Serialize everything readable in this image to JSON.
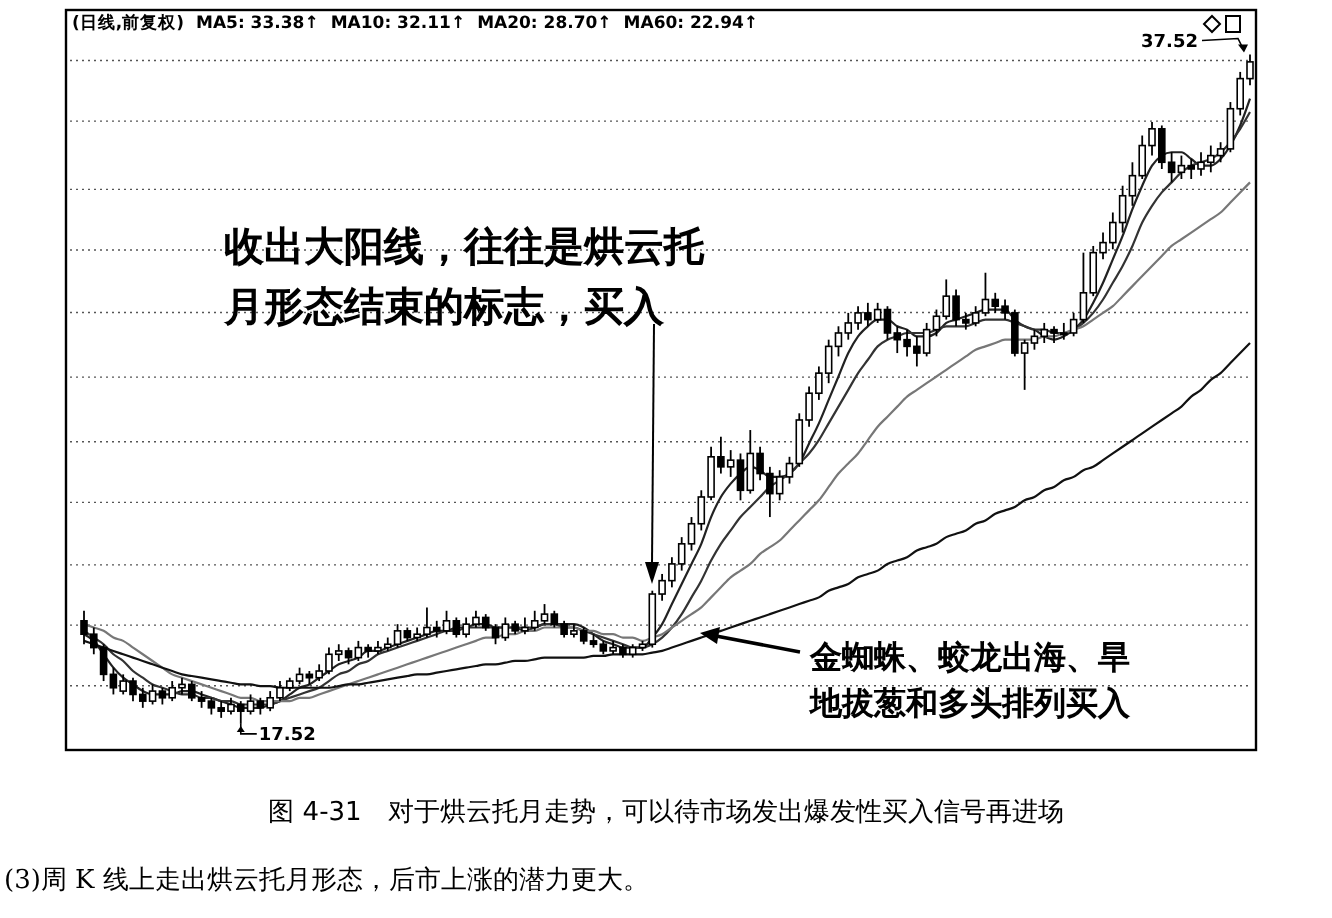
{
  "chart_data": {
    "type": "candlestick",
    "title": "(日线,前复权)",
    "categories": [
      null,
      null,
      null,
      null,
      null,
      null,
      null,
      null,
      null,
      null,
      null,
      null,
      null,
      null,
      null,
      null,
      null,
      null,
      null,
      null,
      null,
      null,
      null,
      null,
      null,
      null,
      null,
      null,
      null,
      null,
      null,
      null,
      null,
      null,
      null,
      null,
      null,
      null,
      null,
      null,
      null,
      null,
      null,
      null,
      null,
      null,
      null,
      null,
      null,
      null,
      null,
      null,
      null,
      null,
      null,
      null,
      null,
      null,
      null,
      null,
      null,
      null,
      null,
      null,
      null,
      null,
      null,
      null,
      null,
      null,
      null,
      null,
      null,
      null,
      null,
      null,
      null,
      null,
      null,
      null,
      null,
      null,
      null,
      null,
      null,
      null,
      null,
      null,
      null,
      null,
      null,
      null,
      null,
      null,
      null,
      null,
      null,
      null,
      null,
      null,
      null,
      null,
      null,
      null,
      null,
      null,
      null,
      null,
      null,
      null,
      null,
      null,
      null,
      null,
      null,
      null,
      null,
      null,
      null,
      null
    ],
    "ohlc": [
      [
        20.6,
        20.9,
        19.9,
        20.2
      ],
      [
        20.2,
        20.4,
        19.6,
        19.8
      ],
      [
        19.8,
        19.9,
        18.8,
        19.0
      ],
      [
        19.0,
        19.2,
        18.4,
        18.6
      ],
      [
        18.5,
        19.0,
        18.4,
        18.8
      ],
      [
        18.8,
        18.9,
        18.2,
        18.4
      ],
      [
        18.4,
        18.6,
        18.0,
        18.2
      ],
      [
        18.2,
        18.7,
        18.1,
        18.5
      ],
      [
        18.5,
        18.6,
        18.1,
        18.3
      ],
      [
        18.3,
        18.8,
        18.2,
        18.6
      ],
      [
        18.6,
        18.9,
        18.4,
        18.7
      ],
      [
        18.7,
        18.8,
        18.2,
        18.3
      ],
      [
        18.3,
        18.5,
        18.0,
        18.2
      ],
      [
        18.2,
        18.3,
        17.8,
        18.0
      ],
      [
        18.0,
        18.2,
        17.7,
        17.9
      ],
      [
        17.9,
        18.3,
        17.8,
        18.1
      ],
      [
        18.1,
        18.2,
        17.52,
        17.9
      ],
      [
        17.9,
        18.4,
        17.8,
        18.2
      ],
      [
        18.2,
        18.3,
        17.8,
        18.0
      ],
      [
        18.0,
        18.5,
        17.9,
        18.3
      ],
      [
        18.3,
        18.8,
        18.2,
        18.6
      ],
      [
        18.6,
        18.9,
        18.5,
        18.8
      ],
      [
        18.8,
        19.2,
        18.7,
        19.0
      ],
      [
        19.0,
        19.1,
        18.7,
        18.9
      ],
      [
        18.9,
        19.3,
        18.8,
        19.1
      ],
      [
        19.1,
        19.8,
        19.0,
        19.6
      ],
      [
        19.6,
        19.9,
        19.4,
        19.7
      ],
      [
        19.7,
        19.8,
        19.3,
        19.5
      ],
      [
        19.5,
        20.0,
        19.4,
        19.8
      ],
      [
        19.8,
        19.9,
        19.5,
        19.7
      ],
      [
        19.7,
        20.0,
        19.6,
        19.8
      ],
      [
        19.8,
        20.1,
        19.7,
        19.9
      ],
      [
        19.9,
        20.5,
        19.8,
        20.3
      ],
      [
        20.3,
        20.4,
        20.0,
        20.1
      ],
      [
        20.1,
        20.4,
        20.0,
        20.2
      ],
      [
        20.2,
        21.0,
        20.1,
        20.4
      ],
      [
        20.4,
        20.6,
        20.1,
        20.3
      ],
      [
        20.3,
        20.9,
        20.2,
        20.6
      ],
      [
        20.6,
        20.7,
        20.1,
        20.2
      ],
      [
        20.2,
        20.7,
        20.1,
        20.5
      ],
      [
        20.5,
        20.9,
        20.4,
        20.7
      ],
      [
        20.7,
        20.8,
        20.3,
        20.4
      ],
      [
        20.4,
        20.5,
        19.9,
        20.1
      ],
      [
        20.1,
        20.7,
        20.0,
        20.5
      ],
      [
        20.5,
        20.6,
        20.2,
        20.3
      ],
      [
        20.3,
        20.7,
        20.2,
        20.4
      ],
      [
        20.4,
        20.9,
        20.3,
        20.6
      ],
      [
        20.6,
        21.1,
        20.5,
        20.8
      ],
      [
        20.8,
        20.9,
        20.4,
        20.5
      ],
      [
        20.5,
        20.6,
        20.1,
        20.2
      ],
      [
        20.2,
        20.5,
        20.1,
        20.3
      ],
      [
        20.3,
        20.4,
        19.9,
        20.0
      ],
      [
        20.0,
        20.2,
        19.8,
        19.9
      ],
      [
        19.9,
        20.0,
        19.6,
        19.7
      ],
      [
        19.7,
        20.0,
        19.6,
        19.8
      ],
      [
        19.8,
        19.9,
        19.5,
        19.6
      ],
      [
        19.6,
        19.9,
        19.5,
        19.8
      ],
      [
        19.8,
        20.0,
        19.7,
        19.9
      ],
      [
        19.9,
        21.5,
        19.8,
        21.4
      ],
      [
        21.4,
        22.0,
        21.2,
        21.8
      ],
      [
        21.8,
        22.5,
        21.6,
        22.3
      ],
      [
        22.3,
        23.1,
        22.1,
        22.9
      ],
      [
        22.9,
        23.7,
        22.7,
        23.5
      ],
      [
        23.5,
        24.5,
        23.3,
        24.3
      ],
      [
        24.3,
        25.8,
        24.2,
        25.5
      ],
      [
        25.5,
        26.1,
        25.0,
        25.2
      ],
      [
        25.2,
        25.7,
        24.9,
        25.4
      ],
      [
        25.4,
        25.6,
        24.2,
        24.5
      ],
      [
        24.5,
        26.3,
        24.4,
        25.6
      ],
      [
        25.6,
        25.8,
        24.8,
        25.0
      ],
      [
        25.0,
        25.2,
        23.7,
        24.4
      ],
      [
        24.4,
        25.1,
        24.2,
        24.9
      ],
      [
        24.9,
        25.5,
        24.7,
        25.3
      ],
      [
        25.3,
        26.8,
        25.2,
        26.6
      ],
      [
        26.6,
        27.6,
        26.4,
        27.4
      ],
      [
        27.4,
        28.2,
        27.2,
        28.0
      ],
      [
        28.0,
        29.0,
        27.7,
        28.8
      ],
      [
        28.8,
        29.4,
        28.5,
        29.2
      ],
      [
        29.2,
        29.8,
        29.0,
        29.5
      ],
      [
        29.5,
        30.0,
        29.3,
        29.8
      ],
      [
        29.8,
        30.1,
        29.4,
        29.6
      ],
      [
        29.6,
        30.1,
        29.5,
        29.9
      ],
      [
        29.9,
        30.0,
        29.0,
        29.2
      ],
      [
        29.2,
        29.4,
        28.6,
        29.0
      ],
      [
        29.0,
        29.3,
        28.5,
        28.8
      ],
      [
        28.8,
        29.1,
        28.2,
        28.6
      ],
      [
        28.6,
        29.5,
        28.5,
        29.3
      ],
      [
        29.3,
        29.9,
        29.1,
        29.7
      ],
      [
        29.7,
        30.8,
        29.6,
        30.3
      ],
      [
        30.3,
        30.5,
        29.4,
        29.6
      ],
      [
        29.6,
        29.8,
        29.3,
        29.5
      ],
      [
        29.5,
        30.0,
        29.4,
        29.8
      ],
      [
        29.8,
        31.0,
        29.7,
        30.2
      ],
      [
        30.2,
        30.4,
        29.8,
        30.0
      ],
      [
        30.0,
        30.2,
        29.6,
        29.8
      ],
      [
        29.8,
        29.9,
        28.5,
        28.6
      ],
      [
        28.6,
        29.0,
        27.5,
        28.9
      ],
      [
        28.9,
        29.3,
        28.7,
        29.1
      ],
      [
        29.1,
        29.5,
        28.9,
        29.3
      ],
      [
        29.3,
        29.4,
        28.9,
        29.2
      ],
      [
        29.2,
        29.5,
        29.0,
        29.2
      ],
      [
        29.2,
        29.8,
        29.1,
        29.6
      ],
      [
        29.6,
        31.6,
        29.5,
        30.4
      ],
      [
        30.4,
        31.8,
        30.3,
        31.6
      ],
      [
        31.6,
        32.2,
        31.4,
        31.9
      ],
      [
        31.9,
        32.8,
        31.7,
        32.5
      ],
      [
        32.5,
        33.6,
        32.2,
        33.3
      ],
      [
        33.3,
        34.3,
        33.0,
        33.9
      ],
      [
        33.9,
        35.1,
        33.8,
        34.8
      ],
      [
        34.8,
        35.5,
        34.5,
        35.3
      ],
      [
        35.3,
        35.4,
        34.1,
        34.3
      ],
      [
        34.3,
        34.6,
        33.7,
        34.0
      ],
      [
        34.0,
        34.5,
        33.8,
        34.2
      ],
      [
        34.2,
        34.4,
        33.8,
        34.1
      ],
      [
        34.1,
        34.6,
        33.9,
        34.3
      ],
      [
        34.3,
        34.8,
        34.0,
        34.5
      ],
      [
        34.5,
        34.9,
        34.3,
        34.7
      ],
      [
        34.7,
        36.1,
        34.6,
        35.9
      ],
      [
        35.9,
        37.0,
        35.7,
        36.8
      ],
      [
        36.8,
        37.52,
        36.6,
        37.3
      ]
    ],
    "series": [
      {
        "type": "line",
        "color": "#222222",
        "values": [
          20.2,
          20.0,
          19.6,
          19.2,
          18.9,
          18.7,
          18.5,
          18.4,
          18.4,
          18.4,
          18.5,
          18.5,
          18.4,
          18.3,
          18.2,
          18.1,
          18.0,
          18.0,
          18.0,
          18.1,
          18.2,
          18.4,
          18.6,
          18.7,
          18.9,
          19.1,
          19.3,
          19.4,
          19.5,
          19.7,
          19.7,
          19.8,
          19.9,
          20.0,
          20.1,
          20.2,
          20.3,
          20.3,
          20.4,
          20.4,
          20.5,
          20.5,
          20.4,
          20.4,
          20.4,
          20.3,
          20.4,
          20.5,
          20.5,
          20.5,
          20.5,
          20.4,
          20.2,
          20.0,
          19.9,
          19.8,
          19.8,
          19.8,
          20.1,
          20.5,
          21.1,
          21.7,
          22.3,
          22.9,
          23.7,
          24.3,
          24.7,
          25.0,
          25.2,
          25.1,
          24.9,
          24.9,
          25.0,
          25.3,
          25.9,
          26.5,
          27.2,
          27.9,
          28.6,
          29.1,
          29.4,
          29.6,
          29.6,
          29.4,
          29.3,
          29.1,
          29.1,
          29.2,
          29.5,
          29.6,
          29.7,
          29.8,
          29.9,
          29.9,
          29.9,
          29.6,
          29.4,
          29.3,
          29.1,
          29.0,
          29.1,
          29.3,
          29.6,
          30.1,
          30.7,
          31.4,
          32.1,
          32.9,
          33.6,
          34.2,
          34.5,
          34.6,
          34.6,
          34.4,
          34.2,
          34.2,
          34.4,
          34.8,
          35.4,
          36.2
        ]
      },
      {
        "type": "line",
        "color": "#333333",
        "values": [
          20.3,
          20.1,
          19.9,
          19.6,
          19.4,
          19.1,
          18.9,
          18.7,
          18.6,
          18.5,
          18.4,
          18.4,
          18.3,
          18.3,
          18.2,
          18.2,
          18.1,
          18.1,
          18.1,
          18.1,
          18.2,
          18.3,
          18.4,
          18.5,
          18.6,
          18.8,
          19.0,
          19.1,
          19.3,
          19.4,
          19.6,
          19.7,
          19.8,
          19.9,
          20.0,
          20.1,
          20.2,
          20.3,
          20.3,
          20.4,
          20.4,
          20.4,
          20.4,
          20.4,
          20.4,
          20.4,
          20.4,
          20.5,
          20.5,
          20.4,
          20.4,
          20.3,
          20.2,
          20.1,
          20.0,
          19.9,
          19.8,
          19.8,
          19.9,
          20.1,
          20.4,
          20.8,
          21.3,
          21.8,
          22.4,
          22.9,
          23.3,
          23.7,
          24.0,
          24.3,
          24.6,
          24.8,
          25.0,
          25.3,
          25.6,
          26.0,
          26.5,
          27.0,
          27.5,
          28.0,
          28.4,
          28.8,
          29.0,
          29.1,
          29.2,
          29.2,
          29.2,
          29.3,
          29.4,
          29.4,
          29.4,
          29.5,
          29.6,
          29.6,
          29.6,
          29.5,
          29.4,
          29.3,
          29.3,
          29.2,
          29.2,
          29.3,
          29.5,
          29.8,
          30.2,
          30.7,
          31.2,
          31.8,
          32.5,
          33.0,
          33.4,
          33.7,
          34.0,
          34.2,
          34.3,
          34.4,
          34.6,
          34.9,
          35.3,
          35.8
        ]
      },
      {
        "type": "line",
        "color": "#777777",
        "values": [
          20.5,
          20.4,
          20.3,
          20.1,
          20.0,
          19.8,
          19.6,
          19.4,
          19.2,
          19.0,
          18.9,
          18.8,
          18.7,
          18.6,
          18.5,
          18.4,
          18.3,
          18.3,
          18.2,
          18.2,
          18.2,
          18.2,
          18.3,
          18.3,
          18.4,
          18.5,
          18.6,
          18.7,
          18.8,
          18.9,
          19.0,
          19.1,
          19.2,
          19.3,
          19.4,
          19.5,
          19.6,
          19.7,
          19.8,
          19.9,
          20.0,
          20.1,
          20.1,
          20.2,
          20.2,
          20.3,
          20.3,
          20.4,
          20.4,
          20.4,
          20.4,
          20.3,
          20.3,
          20.2,
          20.2,
          20.1,
          20.1,
          20.0,
          20.1,
          20.2,
          20.4,
          20.6,
          20.8,
          21.0,
          21.3,
          21.6,
          21.9,
          22.1,
          22.3,
          22.6,
          22.8,
          23.0,
          23.3,
          23.6,
          23.9,
          24.2,
          24.6,
          25.0,
          25.3,
          25.6,
          26.0,
          26.4,
          26.7,
          27.0,
          27.3,
          27.5,
          27.7,
          27.9,
          28.1,
          28.3,
          28.5,
          28.7,
          28.8,
          28.9,
          29.0,
          29.0,
          29.0,
          29.0,
          29.1,
          29.1,
          29.2,
          29.3,
          29.4,
          29.6,
          29.8,
          30.0,
          30.3,
          30.6,
          30.9,
          31.2,
          31.5,
          31.8,
          32.0,
          32.2,
          32.4,
          32.6,
          32.8,
          33.1,
          33.4,
          33.7
        ]
      },
      {
        "type": "line",
        "color": "#111111",
        "values": [
          20.0,
          19.9,
          19.8,
          19.7,
          19.6,
          19.5,
          19.4,
          19.3,
          19.2,
          19.1,
          19.0,
          18.95,
          18.9,
          18.85,
          18.8,
          18.75,
          18.7,
          18.7,
          18.65,
          18.65,
          18.6,
          18.6,
          18.6,
          18.6,
          18.6,
          18.6,
          18.65,
          18.7,
          18.7,
          18.75,
          18.8,
          18.85,
          18.9,
          18.95,
          19.0,
          19.0,
          19.05,
          19.1,
          19.15,
          19.2,
          19.25,
          19.3,
          19.3,
          19.35,
          19.4,
          19.4,
          19.45,
          19.5,
          19.5,
          19.5,
          19.5,
          19.5,
          19.55,
          19.55,
          19.6,
          19.6,
          19.6,
          19.6,
          19.65,
          19.7,
          19.8,
          19.9,
          20.0,
          20.1,
          20.2,
          20.3,
          20.4,
          20.5,
          20.6,
          20.7,
          20.8,
          20.9,
          21.0,
          21.1,
          21.2,
          21.3,
          21.5,
          21.6,
          21.7,
          21.9,
          22.0,
          22.1,
          22.3,
          22.4,
          22.5,
          22.7,
          22.8,
          22.9,
          23.1,
          23.2,
          23.3,
          23.5,
          23.6,
          23.8,
          23.9,
          24.0,
          24.2,
          24.3,
          24.5,
          24.6,
          24.8,
          24.9,
          25.1,
          25.2,
          25.4,
          25.6,
          25.8,
          26.0,
          26.2,
          26.4,
          26.6,
          26.8,
          27.0,
          27.3,
          27.5,
          27.8,
          28.0,
          28.3,
          28.6,
          28.9
        ]
      }
    ],
    "grid": "y",
    "ylim": [
      16.74,
      38.85
    ],
    "yticks": [
      {
        "value": 18.66,
        "label": null
      },
      {
        "value": 20.47,
        "label": null
      },
      {
        "value": 22.27,
        "label": null
      },
      {
        "value": 24.14,
        "label": null
      },
      {
        "value": 25.95,
        "label": null
      },
      {
        "value": 27.88,
        "label": null
      },
      {
        "value": 29.81,
        "label": null
      },
      {
        "value": 31.68,
        "label": null
      },
      {
        "value": 33.49,
        "label": null
      },
      {
        "value": 35.53,
        "label": null
      },
      {
        "value": 37.34,
        "label": null
      }
    ],
    "annotations": [
      "MA5: 33.38↑",
      "MA10: 32.11↑",
      "MA20: 28.70↑",
      "MA60: 22.94↑",
      "37.52",
      "17.52",
      "收出大阳线，往往是烘云托",
      "月形态结束的标志，买入",
      "金蜘蛛、蛟龙出海、旱",
      "地拔葱和多头排列买入",
      "图 4-31　对于烘云托月走势，可以待市场发出爆发性买入信号再进场",
      "(3)周 K 线上走出烘云托月形态，后市上涨的潜力更大。"
    ]
  }
}
